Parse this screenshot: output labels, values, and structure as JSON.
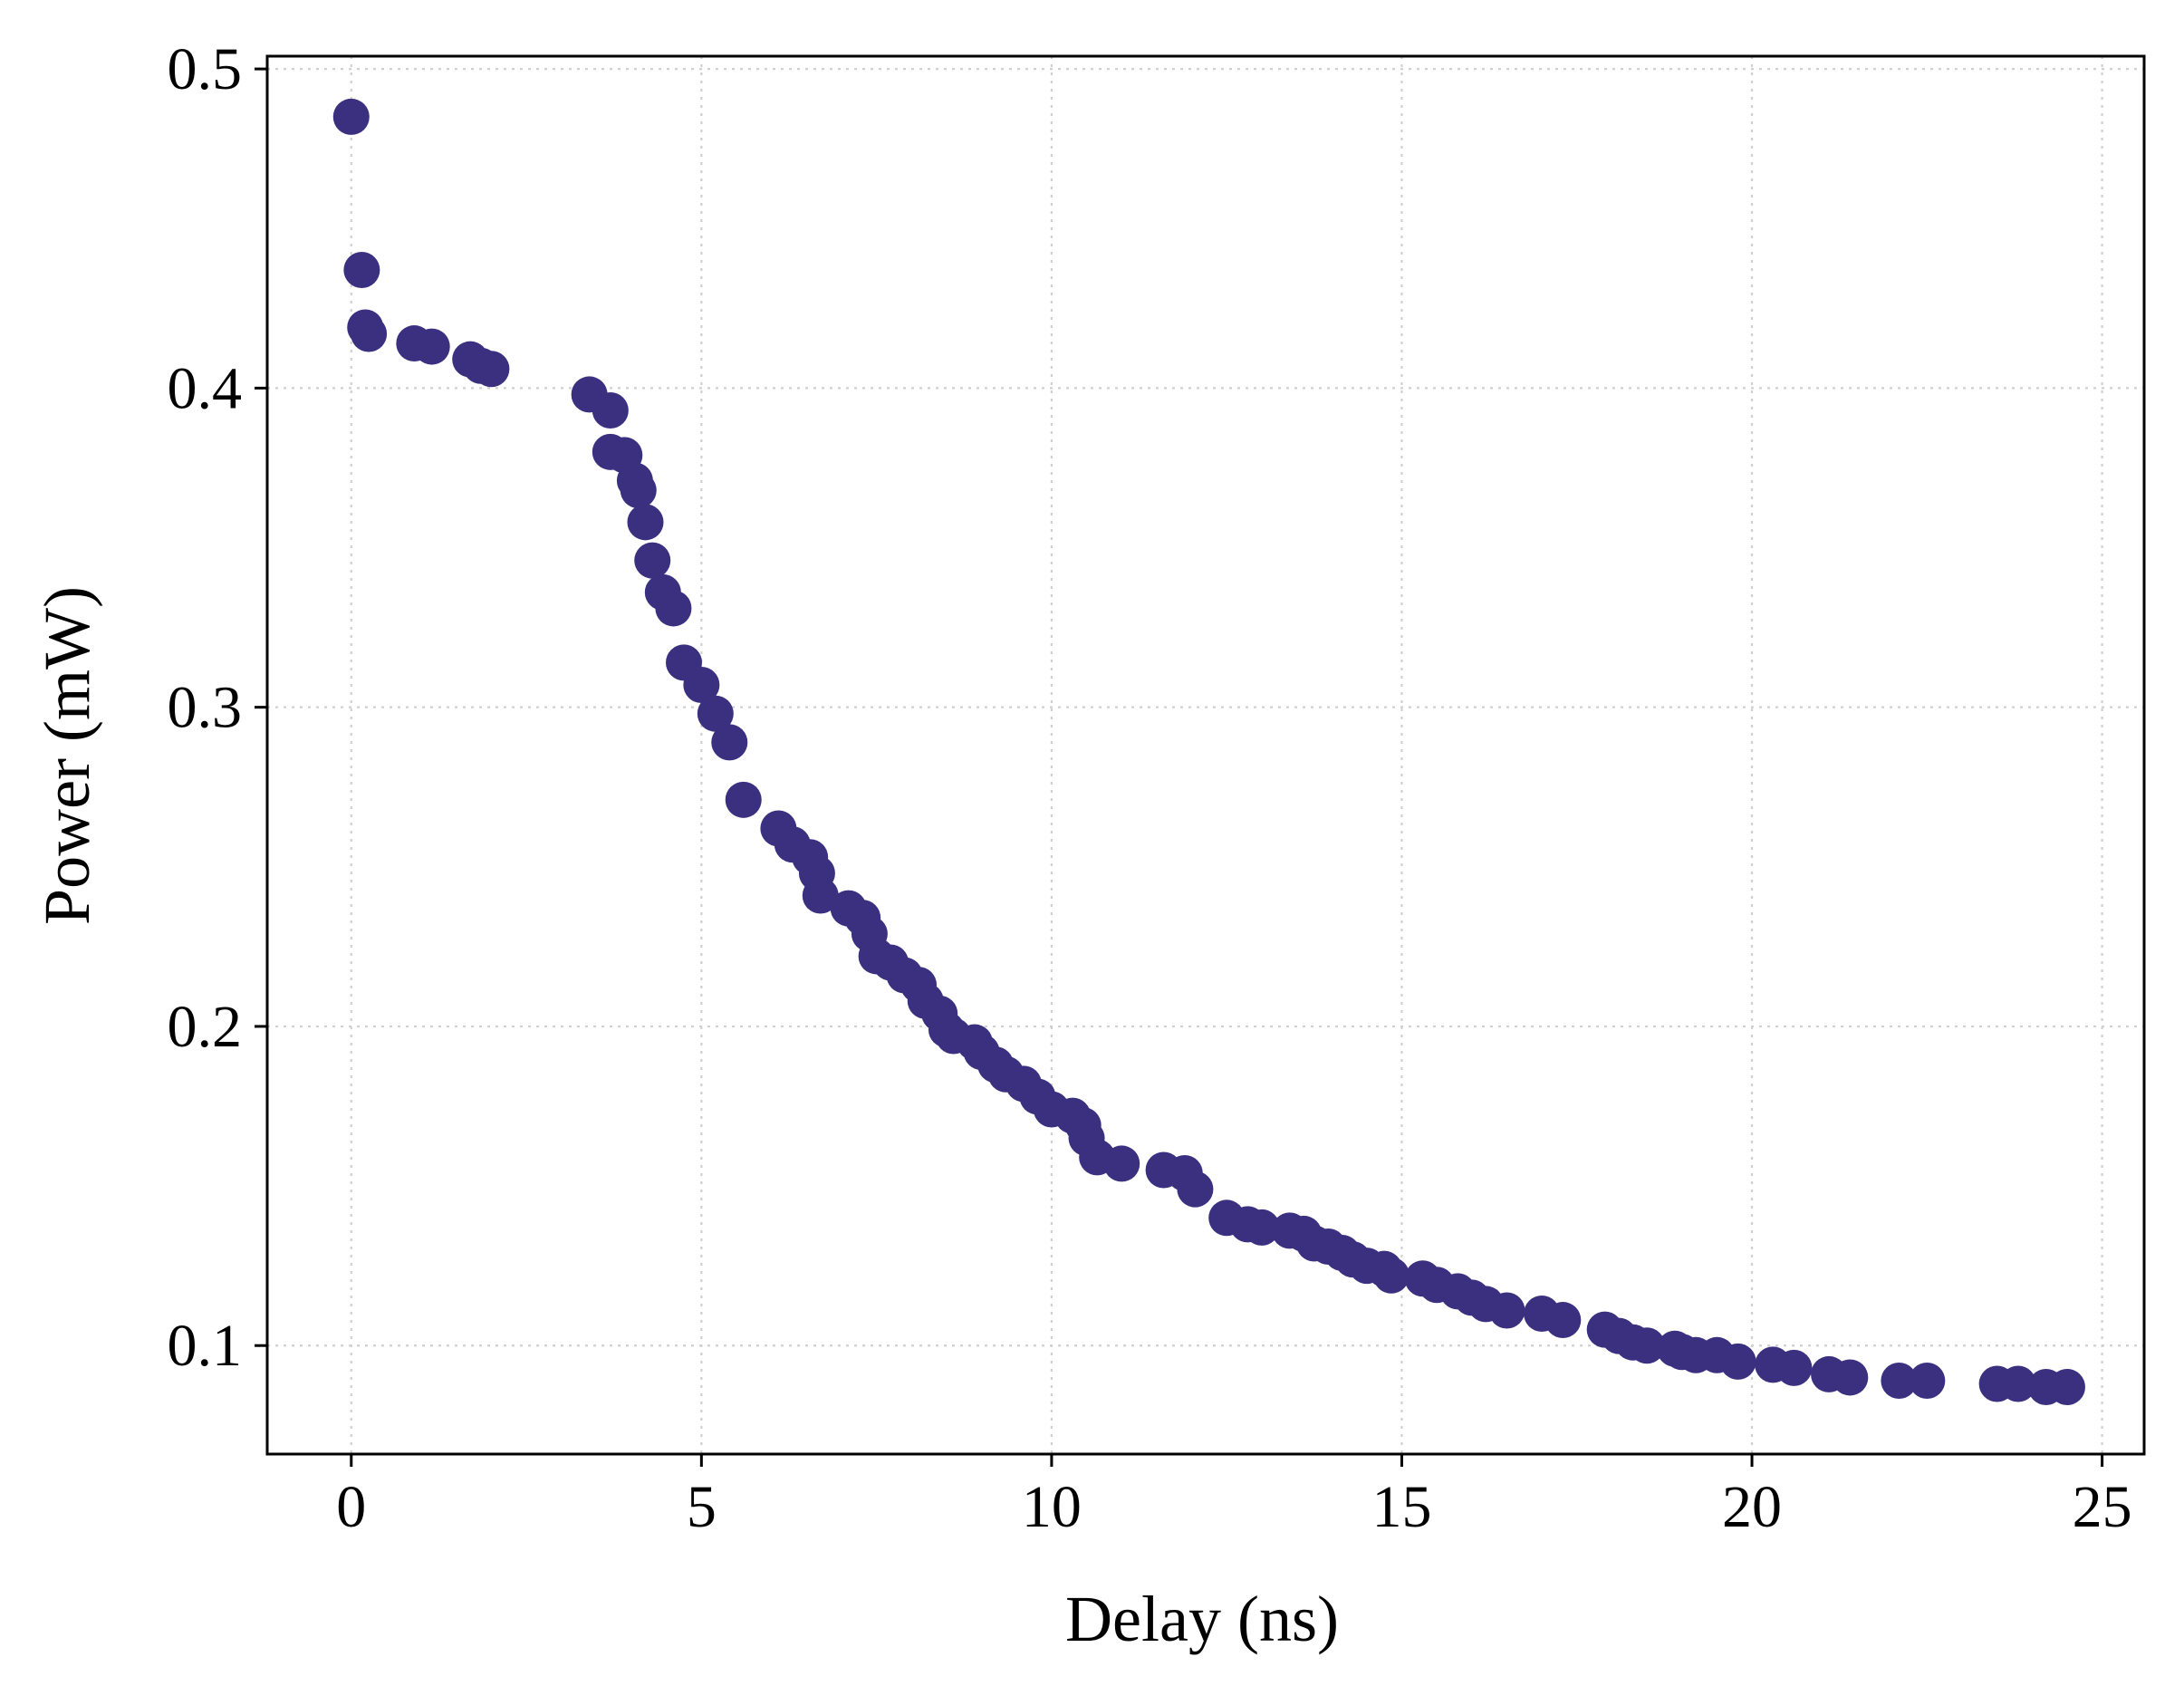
{
  "chart_data": {
    "type": "scatter",
    "xlabel": "Delay (ns)",
    "ylabel": "Power (mW)",
    "xlim": [
      -1.2,
      25.6
    ],
    "ylim": [
      0.066,
      0.504
    ],
    "xticks": [
      0,
      5,
      10,
      15,
      20,
      25
    ],
    "yticks": [
      0.1,
      0.2,
      0.3,
      0.4,
      0.5
    ],
    "xtick_labels": [
      "0",
      "5",
      "10",
      "15",
      "20",
      "25"
    ],
    "ytick_labels": [
      "0.1",
      "0.2",
      "0.3",
      "0.4",
      "0.5"
    ],
    "grid": true,
    "marker_color": "#3b2f80",
    "series": [
      {
        "x": [
          0.0,
          0.15,
          0.2,
          0.25,
          0.9,
          1.15,
          1.7,
          1.85,
          2.0,
          3.4,
          3.7,
          3.7,
          3.9,
          4.05,
          4.1,
          4.2,
          4.3,
          4.45,
          4.6,
          4.75,
          5.0,
          5.2,
          5.4,
          5.6,
          6.1,
          6.3,
          6.55,
          6.65,
          6.7,
          7.1,
          7.3,
          7.4,
          7.5,
          7.7,
          7.9,
          8.1,
          8.2,
          8.4,
          8.5,
          8.6,
          8.9,
          9.0,
          9.2,
          9.35,
          9.6,
          9.8,
          10.0,
          10.3,
          10.45,
          10.5,
          10.65,
          11.0,
          11.6,
          11.9,
          12.05,
          12.5,
          12.8,
          13.0,
          13.4,
          13.6,
          13.75,
          13.95,
          14.15,
          14.3,
          14.5,
          14.75,
          14.85,
          15.3,
          15.5,
          15.8,
          16.0,
          16.2,
          16.5,
          17.0,
          17.3,
          17.9,
          18.1,
          18.3,
          18.5,
          18.9,
          19.0,
          19.2,
          19.5,
          19.8,
          20.3,
          20.6,
          21.1,
          21.4,
          22.1,
          22.5,
          23.5,
          23.8,
          24.2,
          24.5
        ],
        "y": [
          0.485,
          0.437,
          0.419,
          0.417,
          0.414,
          0.413,
          0.409,
          0.407,
          0.406,
          0.398,
          0.393,
          0.38,
          0.379,
          0.371,
          0.368,
          0.358,
          0.346,
          0.336,
          0.331,
          0.314,
          0.307,
          0.298,
          0.289,
          0.271,
          0.262,
          0.257,
          0.253,
          0.248,
          0.241,
          0.237,
          0.234,
          0.229,
          0.222,
          0.22,
          0.216,
          0.213,
          0.208,
          0.204,
          0.199,
          0.197,
          0.195,
          0.192,
          0.188,
          0.185,
          0.182,
          0.178,
          0.174,
          0.172,
          0.169,
          0.165,
          0.159,
          0.157,
          0.155,
          0.154,
          0.149,
          0.14,
          0.138,
          0.137,
          0.136,
          0.135,
          0.132,
          0.131,
          0.129,
          0.127,
          0.125,
          0.124,
          0.122,
          0.121,
          0.119,
          0.117,
          0.115,
          0.113,
          0.111,
          0.11,
          0.108,
          0.105,
          0.103,
          0.101,
          0.1,
          0.099,
          0.098,
          0.097,
          0.097,
          0.095,
          0.094,
          0.093,
          0.091,
          0.09,
          0.089,
          0.089,
          0.088,
          0.088,
          0.087,
          0.087
        ]
      }
    ]
  }
}
